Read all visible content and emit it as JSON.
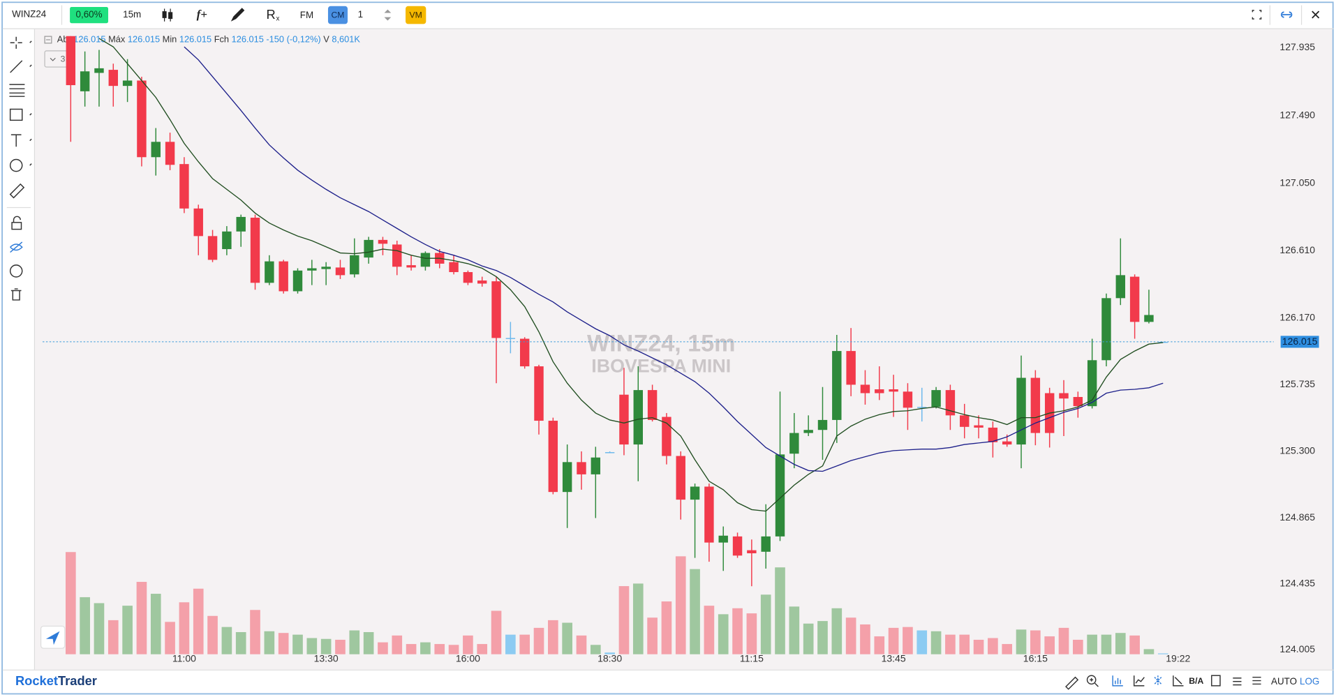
{
  "toolbar": {
    "symbol": "WINZ24",
    "change": "0,60%",
    "timeframe": "15m",
    "function": "f+",
    "fm": "FM",
    "cm": "CM",
    "quantity": "1",
    "vm": "VM"
  },
  "ohlc_header": {
    "open_label": "Abr",
    "open": "126.015",
    "high_label": "Máx",
    "high": "126.015",
    "low_label": "Min",
    "low": "126.015",
    "close_label": "Fch",
    "close": "126.015",
    "change": "-150 (-0,12%)",
    "volume_label": "V",
    "volume": "8,601K",
    "indicator_count": "3"
  },
  "chart_data": {
    "type": "candlestick",
    "title": "WINZ24, 15m",
    "subtitle": "IBOVESPA MINI",
    "categories": [
      null,
      null,
      null,
      null,
      null,
      null,
      null,
      null,
      "11:00",
      null,
      null,
      null,
      null,
      null,
      null,
      null,
      null,
      null,
      "13:30",
      null,
      null,
      null,
      null,
      null,
      null,
      null,
      null,
      null,
      "16:00",
      null,
      null,
      null,
      null,
      null,
      null,
      null,
      null,
      null,
      "18:30",
      null,
      null,
      null,
      null,
      null,
      null,
      null,
      null,
      null,
      "11:15",
      null,
      null,
      null,
      null,
      null,
      null,
      null,
      null,
      null,
      "13:45",
      null,
      null,
      null,
      null,
      null,
      null,
      null,
      null,
      null,
      "16:15",
      null,
      null,
      null,
      null,
      null,
      null,
      null,
      null,
      null
    ],
    "current_time": "19:22",
    "open": [
      128.01,
      127.65,
      127.77,
      127.79,
      127.685,
      127.72,
      127.22,
      127.32,
      127.175,
      126.885,
      126.705,
      126.62,
      126.735,
      126.825,
      126.4,
      126.54,
      126.345,
      126.48,
      126.49,
      126.5,
      126.455,
      126.565,
      126.68,
      126.65,
      126.515,
      126.505,
      126.595,
      126.535,
      126.47,
      126.415,
      126.41,
      126.04,
      126.035,
      125.855,
      125.5,
      125.035,
      125.23,
      125.15,
      125.295,
      125.67,
      125.345,
      125.7,
      125.525,
      125.27,
      124.985,
      125.07,
      124.705,
      124.745,
      124.655,
      124.645,
      124.745,
      125.285,
      125.42,
      125.44,
      125.505,
      125.955,
      125.735,
      125.705,
      125.705,
      125.69,
      125.59,
      125.59,
      125.7,
      125.535,
      125.47,
      125.455,
      125.365,
      125.345,
      125.78,
      125.68,
      125.68,
      125.655,
      125.595,
      125.895,
      126.3,
      126.44,
      126.145,
      126.015
    ],
    "high": [
      128.01,
      127.91,
      127.92,
      127.83,
      127.86,
      127.745,
      127.41,
      127.38,
      127.22,
      126.91,
      126.745,
      126.77,
      126.845,
      126.845,
      126.58,
      126.55,
      126.495,
      126.55,
      126.535,
      126.55,
      126.69,
      126.7,
      126.7,
      126.675,
      126.58,
      126.605,
      126.62,
      126.58,
      126.48,
      126.44,
      126.44,
      126.145,
      126.045,
      125.865,
      125.52,
      125.345,
      125.3,
      125.33,
      125.3,
      125.845,
      125.855,
      125.735,
      125.55,
      125.3,
      125.09,
      125.09,
      124.81,
      124.77,
      124.725,
      124.955,
      125.69,
      125.55,
      125.535,
      125.72,
      126.06,
      126.105,
      125.83,
      125.855,
      125.8,
      125.745,
      125.715,
      125.72,
      125.735,
      125.61,
      125.535,
      125.495,
      125.41,
      125.925,
      125.83,
      125.715,
      125.765,
      125.69,
      126.035,
      126.33,
      126.69,
      126.455,
      126.355,
      126.015
    ],
    "low": [
      127.32,
      127.55,
      127.55,
      127.55,
      127.58,
      127.16,
      127.1,
      127.135,
      126.855,
      126.58,
      126.535,
      126.58,
      126.635,
      126.355,
      126.385,
      126.33,
      126.33,
      126.385,
      126.385,
      126.425,
      126.435,
      126.525,
      126.58,
      126.45,
      126.48,
      126.48,
      126.495,
      126.455,
      126.385,
      126.375,
      125.745,
      125.94,
      125.84,
      125.41,
      125.02,
      124.8,
      125.05,
      124.865,
      125.29,
      125.275,
      125.105,
      125.495,
      125.215,
      124.855,
      124.605,
      124.58,
      124.52,
      124.605,
      124.42,
      124.535,
      124.715,
      125.19,
      125.4,
      125.245,
      125.355,
      125.66,
      125.605,
      125.635,
      125.525,
      125.44,
      125.495,
      125.58,
      125.44,
      125.385,
      125.385,
      125.26,
      125.33,
      125.19,
      125.34,
      125.325,
      125.4,
      125.52,
      125.58,
      125.855,
      126.255,
      126.035,
      126.135,
      126.015
    ],
    "close": [
      127.69,
      127.78,
      127.8,
      127.685,
      127.72,
      127.22,
      127.32,
      127.17,
      126.885,
      126.705,
      126.55,
      126.735,
      126.83,
      126.4,
      126.54,
      126.345,
      126.48,
      126.495,
      126.505,
      126.45,
      126.58,
      126.68,
      126.655,
      126.505,
      126.5,
      126.595,
      126.525,
      126.47,
      126.4,
      126.395,
      126.04,
      126.04,
      125.855,
      125.5,
      125.035,
      125.23,
      125.15,
      125.26,
      125.295,
      125.345,
      125.7,
      125.505,
      125.27,
      124.985,
      125.07,
      124.705,
      124.75,
      124.62,
      124.635,
      124.745,
      125.28,
      125.42,
      125.44,
      125.505,
      125.955,
      125.735,
      125.68,
      125.68,
      125.69,
      125.585,
      125.59,
      125.7,
      125.535,
      125.46,
      125.455,
      125.36,
      125.345,
      125.78,
      125.42,
      125.42,
      125.645,
      125.595,
      125.895,
      126.3,
      126.45,
      126.145,
      126.19,
      126.015
    ],
    "volume": [
      120,
      67,
      60,
      40,
      57,
      85,
      71,
      38,
      61,
      77,
      45,
      32,
      26,
      52,
      27,
      25,
      23,
      19,
      18,
      17,
      28,
      26,
      14,
      22,
      12,
      14,
      12,
      11,
      22,
      12,
      51,
      23,
      23,
      31,
      40,
      37,
      22,
      11,
      2,
      80,
      83,
      43,
      62,
      115,
      100,
      57,
      47,
      54,
      48,
      70,
      102,
      56,
      36,
      39,
      54,
      43,
      35,
      21,
      31,
      32,
      28,
      27,
      23,
      23,
      17,
      19,
      12,
      29,
      28,
      21,
      31,
      17,
      23,
      23,
      25,
      22,
      6,
      1
    ],
    "vlim": [
      0,
      130
    ],
    "overlays": [
      {
        "color": "#1f4d1f",
        "values": [
          null,
          null,
          127.995,
          127.94,
          127.83,
          127.72,
          127.61,
          127.465,
          127.31,
          127.19,
          127.08,
          127.01,
          126.94,
          126.855,
          126.79,
          126.745,
          126.705,
          126.675,
          126.635,
          126.595,
          126.59,
          126.6,
          126.62,
          126.61,
          126.58,
          126.56,
          126.56,
          126.545,
          126.525,
          126.495,
          126.44,
          126.355,
          126.245,
          126.08,
          125.885,
          125.745,
          125.635,
          125.55,
          125.505,
          125.485,
          125.51,
          125.52,
          125.485,
          125.4,
          125.245,
          125.105,
          125.05,
          124.965,
          124.92,
          124.91,
          124.995,
          125.08,
          125.15,
          125.205,
          125.4,
          125.465,
          125.51,
          125.54,
          125.56,
          125.565,
          125.58,
          125.59,
          125.565,
          125.54,
          125.52,
          125.505,
          125.475,
          125.52,
          125.52,
          125.55,
          125.565,
          125.59,
          125.635,
          125.785,
          125.9,
          125.955,
          126.0,
          126.01
        ]
      },
      {
        "color": "#1c1f8a",
        "values": [
          null,
          null,
          null,
          null,
          null,
          null,
          null,
          null,
          127.94,
          127.855,
          127.745,
          127.635,
          127.525,
          127.41,
          127.3,
          127.215,
          127.135,
          127.07,
          127.01,
          126.955,
          126.91,
          126.865,
          126.81,
          126.755,
          126.7,
          126.65,
          126.605,
          126.58,
          126.55,
          126.51,
          126.48,
          126.435,
          126.38,
          126.325,
          126.275,
          126.21,
          126.155,
          126.1,
          126.055,
          125.995,
          125.955,
          125.91,
          125.865,
          125.81,
          125.755,
          125.68,
          125.59,
          125.495,
          125.41,
          125.325,
          125.27,
          125.215,
          125.175,
          125.17,
          125.205,
          125.24,
          125.265,
          125.29,
          125.305,
          125.31,
          125.315,
          125.315,
          125.325,
          125.345,
          125.355,
          125.365,
          125.395,
          125.44,
          125.485,
          125.52,
          125.555,
          125.58,
          125.62,
          125.68,
          125.7,
          125.705,
          125.715,
          125.745
        ]
      }
    ],
    "up_color": "#2f8a3b",
    "down_color": "#f23a4b",
    "neutral_color": "#6cb8ec",
    "volume_up_color": "#9fc79f",
    "volume_down_color": "#f4a0a9",
    "volume_neutral_color": "#8ccbf2",
    "ylim": [
      123.965,
      128.05
    ],
    "yticks": [
      127.935,
      {
        "value": 127.49,
        "label": "127.490"
      },
      {
        "value": 127.05,
        "label": "127.050"
      },
      {
        "value": 126.61,
        "label": "126.610"
      },
      {
        "value": 126.17,
        "label": "126.170"
      },
      125.735,
      {
        "value": 125.3,
        "label": "125.300"
      },
      124.865,
      124.435,
      124.005
    ],
    "grid": false,
    "last_price": 126.015
  },
  "footer": {
    "brand_bold": "Rocket",
    "brand": "Trader",
    "ba": "B/A",
    "auto": "AUTO",
    "log": "LOG"
  }
}
